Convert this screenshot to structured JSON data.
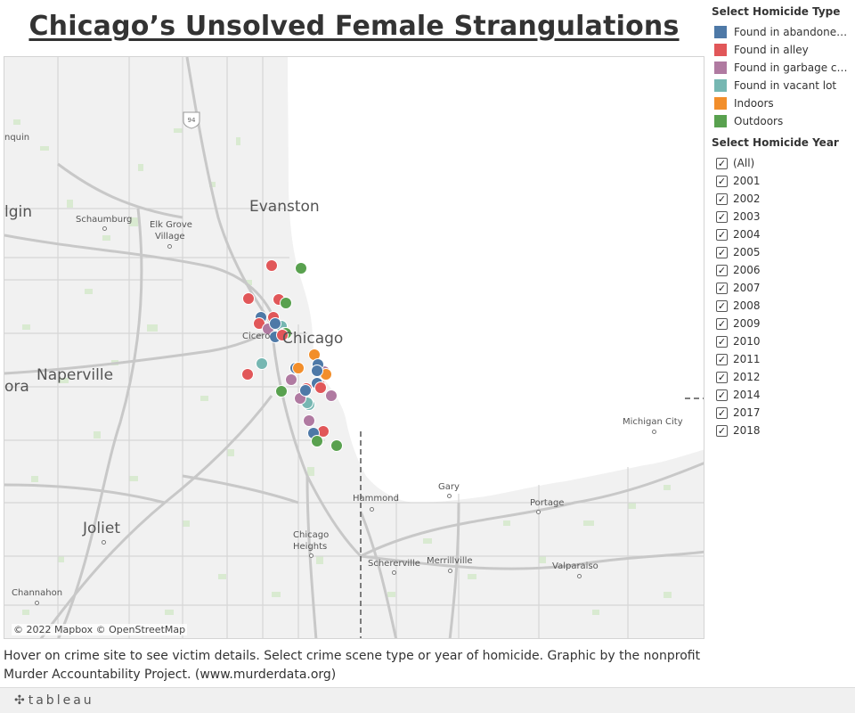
{
  "title": "Chicago’s Unsolved Female Strangulations",
  "legend": {
    "title": "Select Homicide Type",
    "items": [
      {
        "label": "Found in abandoned ...",
        "color": "#4e79a7"
      },
      {
        "label": "Found in alley",
        "color": "#e15759"
      },
      {
        "label": "Found in garbage can",
        "color": "#b07aa1"
      },
      {
        "label": "Found in vacant lot",
        "color": "#76b7b2"
      },
      {
        "label": "Indoors",
        "color": "#f28e2b"
      },
      {
        "label": "Outdoors",
        "color": "#59a14f"
      }
    ]
  },
  "year_filter": {
    "title": "Select Homicide Year",
    "check": "✓",
    "items": [
      "(All)",
      "2001",
      "2002",
      "2003",
      "2004",
      "2005",
      "2006",
      "2007",
      "2008",
      "2009",
      "2010",
      "2011",
      "2012",
      "2014",
      "2017",
      "2018"
    ]
  },
  "map": {
    "credit": "© 2022 Mapbox © OpenStreetMap",
    "highway_shield": "94",
    "places": [
      {
        "name": "Evanston",
        "size": "big"
      },
      {
        "name": "Chicago",
        "size": "big"
      },
      {
        "name": "Naperville",
        "size": "big"
      },
      {
        "name": "Joliet",
        "size": "big"
      },
      {
        "name": "lgin",
        "size": "big"
      },
      {
        "name": "ora",
        "size": "big"
      },
      {
        "name": "nquin",
        "size": "small"
      },
      {
        "name": "Schaumburg",
        "size": "small"
      },
      {
        "name": "Elk Grove",
        "size": "small"
      },
      {
        "name": "Village",
        "size": "small"
      },
      {
        "name": "Cicero",
        "size": "small"
      },
      {
        "name": "Michigan City",
        "size": "small"
      },
      {
        "name": "Gary",
        "size": "small"
      },
      {
        "name": "Hammond",
        "size": "small"
      },
      {
        "name": "Portage",
        "size": "small"
      },
      {
        "name": "Chicago",
        "size": "small"
      },
      {
        "name": "Heights",
        "size": "small"
      },
      {
        "name": "Schererville",
        "size": "small"
      },
      {
        "name": "Merrillville",
        "size": "small"
      },
      {
        "name": "Valparaiso",
        "size": "small"
      },
      {
        "name": "Channahon",
        "size": "small"
      }
    ],
    "points": [
      {
        "type": 1
      },
      {
        "type": 5
      },
      {
        "type": 1
      },
      {
        "type": 1
      },
      {
        "type": 5
      },
      {
        "type": 0
      },
      {
        "type": 1
      },
      {
        "type": 1
      },
      {
        "type": 2
      },
      {
        "type": 3
      },
      {
        "type": 0
      },
      {
        "type": 1
      },
      {
        "type": 5
      },
      {
        "type": 0
      },
      {
        "type": 1
      },
      {
        "type": 3
      },
      {
        "type": 1
      },
      {
        "type": 4
      },
      {
        "type": 0
      },
      {
        "type": 4
      },
      {
        "type": 2
      },
      {
        "type": 0
      },
      {
        "type": 4
      },
      {
        "type": 0
      },
      {
        "type": 1
      },
      {
        "type": 2
      },
      {
        "type": 3
      },
      {
        "type": 5
      },
      {
        "type": 1
      },
      {
        "type": 0
      },
      {
        "type": 2
      },
      {
        "type": 3
      },
      {
        "type": 2
      },
      {
        "type": 0
      },
      {
        "type": 2
      },
      {
        "type": 1
      },
      {
        "type": 0
      },
      {
        "type": 5
      },
      {
        "type": 5
      },
      {
        "type": 1
      }
    ]
  },
  "caption": "Hover on crime site to see victim details. Select crime scene type or year of homicide. Graphic by the nonprofit Murder Accountability Project. (www.murderdata.org)",
  "footer": {
    "logo_text": "tableau",
    "logo_mark": "✣"
  }
}
